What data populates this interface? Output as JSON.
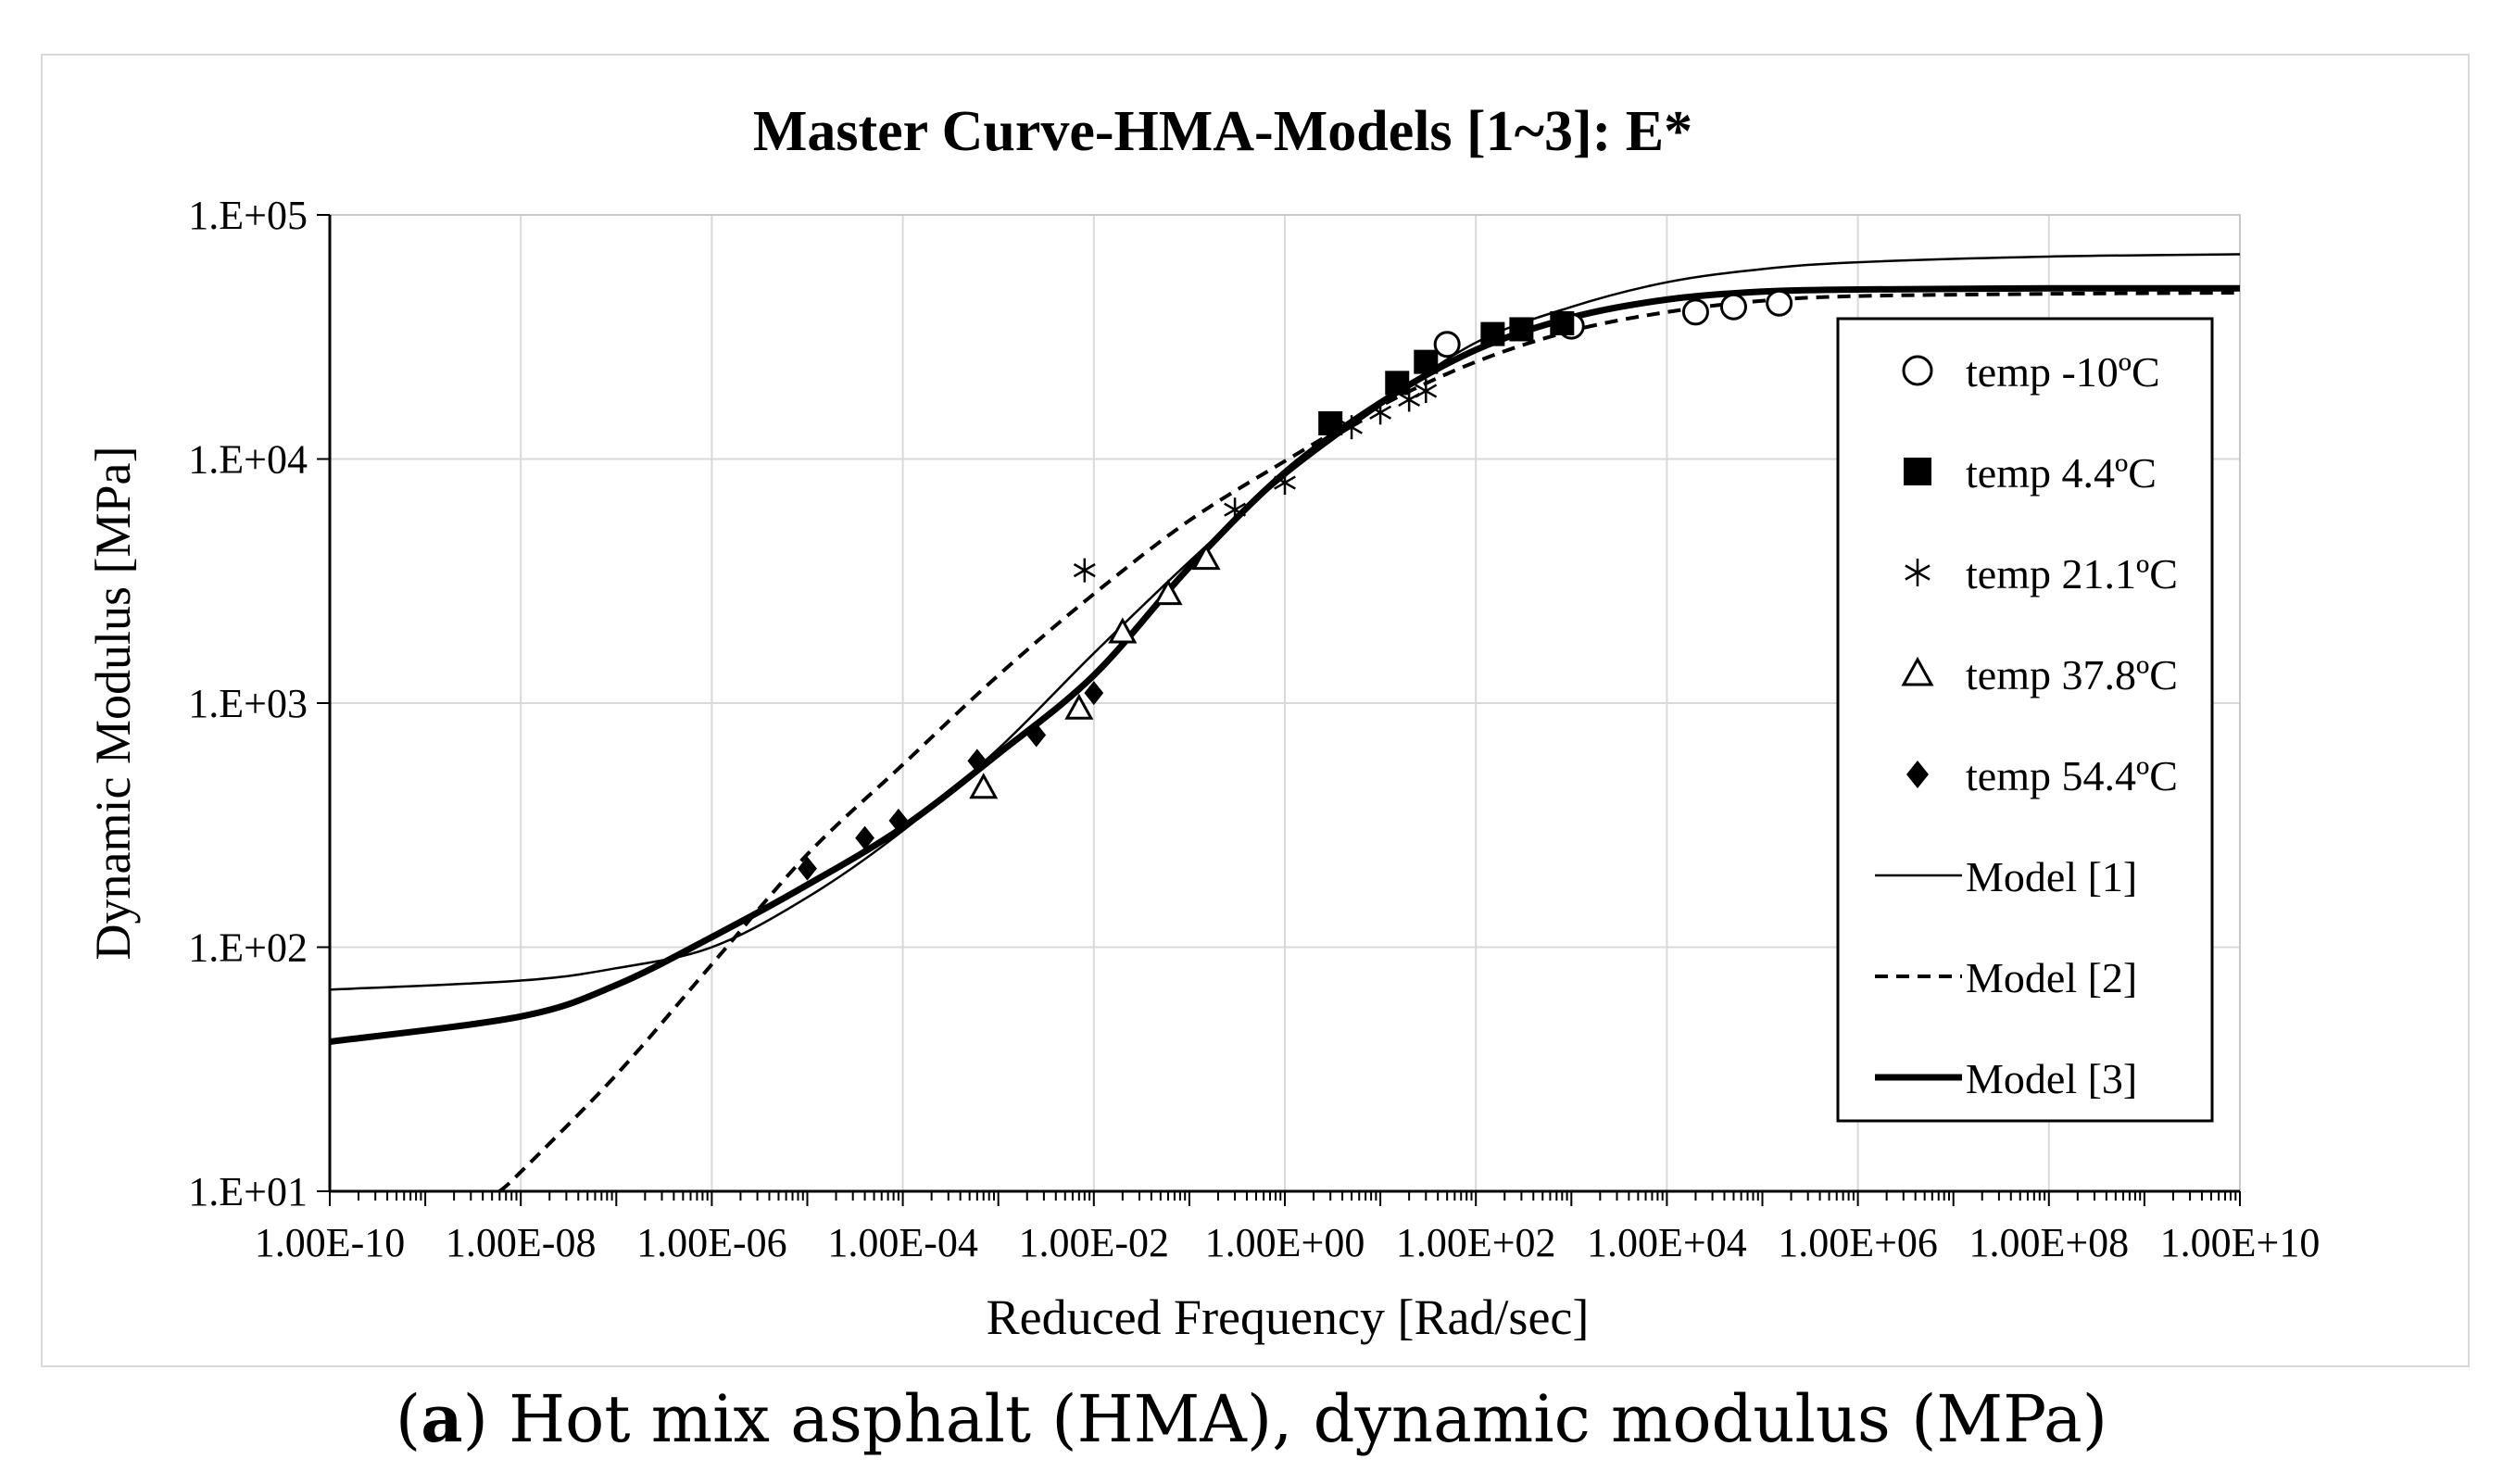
{
  "caption": {
    "label": "a",
    "text": "Hot mix asphalt (HMA), dynamic modulus (MPa)"
  },
  "chart_data": {
    "type": "scatter",
    "title": "Master Curve-HMA-Models [1~3]: E*",
    "xlabel": "Reduced Frequency [Rad/sec]",
    "ylabel": "Dynamic Modulus [MPa]",
    "x_scale": "log",
    "y_scale": "log",
    "xlim": [
      1e-10,
      10000000000.0
    ],
    "ylim": [
      10,
      100000
    ],
    "grid": true,
    "legend_position": "right",
    "x_tick_labels": [
      "1.00E-10",
      "1.00E-08",
      "1.00E-06",
      "1.00E-04",
      "1.00E-02",
      "1.00E+00",
      "1.00E+02",
      "1.00E+04",
      "1.00E+06",
      "1.00E+08",
      "1.00E+10"
    ],
    "x_ticks": [
      1e-10,
      1e-08,
      1e-06,
      0.0001,
      0.01,
      1,
      100.0,
      10000.0,
      1000000.0,
      100000000.0,
      10000000000.0
    ],
    "y_tick_labels": [
      "1.E+01",
      "1.E+02",
      "1.E+03",
      "1.E+04",
      "1.E+05"
    ],
    "y_ticks": [
      10,
      100,
      1000,
      10000,
      100000
    ],
    "series": [
      {
        "name": "temp -10ºC",
        "marker": "circle-open",
        "points": [
          [
            50,
            29500
          ],
          [
            1000,
            35000
          ],
          [
            20000,
            40000
          ],
          [
            50000,
            42000
          ],
          [
            150000,
            43500
          ]
        ]
      },
      {
        "name": "temp 4.4ºC",
        "marker": "square-filled",
        "points": [
          [
            3,
            14000
          ],
          [
            15,
            20500
          ],
          [
            30,
            25000
          ],
          [
            150,
            32500
          ],
          [
            300,
            34000
          ],
          [
            800,
            36000
          ]
        ]
      },
      {
        "name": "temp 21.1ºC",
        "marker": "asterisk",
        "points": [
          [
            0.008,
            3500
          ],
          [
            0.3,
            6200
          ],
          [
            1,
            8000
          ],
          [
            5,
            13500
          ],
          [
            10,
            15500
          ],
          [
            20,
            17500
          ],
          [
            30,
            19000
          ]
        ]
      },
      {
        "name": "temp 37.8ºC",
        "marker": "triangle-open",
        "points": [
          [
            0.0007,
            450
          ],
          [
            0.007,
            950
          ],
          [
            0.02,
            1950
          ],
          [
            0.06,
            2800
          ],
          [
            0.15,
            3900
          ]
        ]
      },
      {
        "name": "temp 54.4ºC",
        "marker": "diamond-filled",
        "points": [
          [
            1e-05,
            210
          ],
          [
            4e-05,
            280
          ],
          [
            9e-05,
            330
          ],
          [
            0.0006,
            580
          ],
          [
            0.0025,
            740
          ],
          [
            0.01,
            1100
          ]
        ]
      },
      {
        "name": "Model [1]",
        "line": "thin-solid",
        "points": [
          [
            1e-10,
            67
          ],
          [
            1e-08,
            73
          ],
          [
            1e-07,
            82
          ],
          [
            1e-06,
            100
          ],
          [
            1e-05,
            160
          ],
          [
            0.0001,
            300
          ],
          [
            0.001,
            650
          ],
          [
            0.01,
            1600
          ],
          [
            0.1,
            3800
          ],
          [
            1,
            8500
          ],
          [
            10,
            16500
          ],
          [
            100,
            30000
          ],
          [
            1000,
            42000
          ],
          [
            10000,
            53000
          ],
          [
            100000,
            60000
          ],
          [
            1000000,
            64000
          ],
          [
            100000000.0,
            67500
          ],
          [
            10000000000.0,
            69000
          ]
        ]
      },
      {
        "name": "Model [2]",
        "line": "dashed",
        "points": [
          [
            6e-09,
            10
          ],
          [
            1e-08,
            12
          ],
          [
            1e-07,
            30
          ],
          [
            1e-06,
            85
          ],
          [
            1e-05,
            240
          ],
          [
            0.0001,
            560
          ],
          [
            0.001,
            1300
          ],
          [
            0.01,
            2800
          ],
          [
            0.1,
            5600
          ],
          [
            1,
            9800
          ],
          [
            10,
            16500
          ],
          [
            100,
            25000
          ],
          [
            1000,
            33500
          ],
          [
            10000,
            40000
          ],
          [
            100000,
            44500
          ],
          [
            1000000,
            46500
          ],
          [
            100000000.0,
            47500
          ],
          [
            10000000000.0,
            48000
          ]
        ]
      },
      {
        "name": "Model [3]",
        "line": "thick-solid",
        "points": [
          [
            1e-10,
            41
          ],
          [
            1e-08,
            52
          ],
          [
            1e-07,
            70
          ],
          [
            1e-06,
            110
          ],
          [
            1e-05,
            180
          ],
          [
            0.0001,
            310
          ],
          [
            0.001,
            620
          ],
          [
            0.01,
            1300
          ],
          [
            0.1,
            3600
          ],
          [
            1,
            8800
          ],
          [
            10,
            17000
          ],
          [
            100,
            28000
          ],
          [
            1000,
            38000
          ],
          [
            10000,
            45000
          ],
          [
            100000,
            48500
          ],
          [
            1000000,
            49500
          ],
          [
            100000000.0,
            50000
          ],
          [
            10000000000.0,
            50000
          ]
        ]
      }
    ]
  }
}
